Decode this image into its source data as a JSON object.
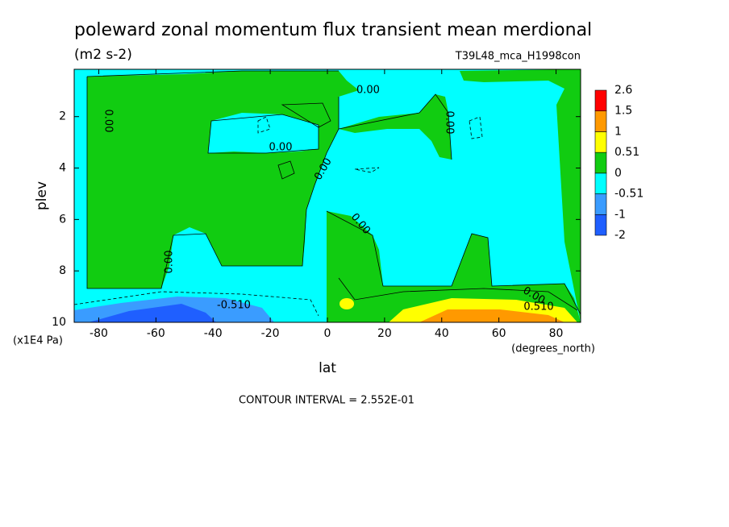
{
  "chart_data": {
    "type": "contour",
    "title": "poleward zonal momentum flux transient mean merdional",
    "subtitle": "(m2 s-2)",
    "dataset": "T39L48_mca_H1998con",
    "x_label": "lat",
    "x_units": "(degrees_north)",
    "y_label": "plev",
    "y_units": "(x1E4 Pa)",
    "xlim": [
      -88.6,
      88.6
    ],
    "xticks": [
      -80,
      -60,
      -40,
      -20,
      0,
      20,
      40,
      60,
      80
    ],
    "ylim": [
      10,
      0.16
    ],
    "yticks": [
      2,
      4,
      6,
      8,
      10
    ],
    "levels": [
      -2,
      -1,
      -0.51,
      0,
      0.51,
      1,
      1.5,
      2.6
    ],
    "colors": [
      "#1f5fff",
      "#3a9cff",
      "#00ffff",
      "#11cc11",
      "#ffff00",
      "#ff9900",
      "#ff0000"
    ],
    "contour_labels": [
      "0.00",
      "0.00",
      "0.00",
      "0.00",
      "0.00",
      "0.00",
      "0.00",
      "0.00",
      "-0.510",
      "0.510"
    ],
    "note": "CONTOUR INTERVAL = 2.552E-01"
  }
}
